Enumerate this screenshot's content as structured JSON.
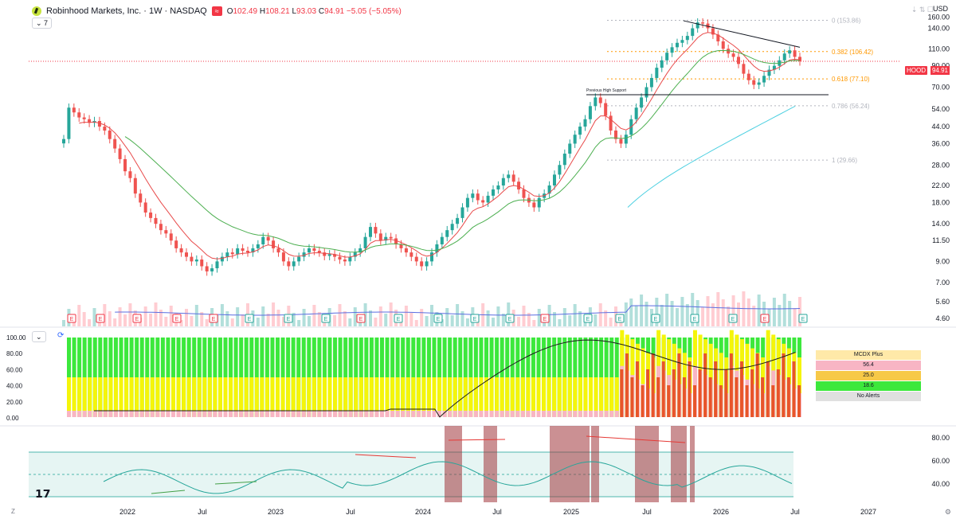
{
  "header": {
    "symbol_title": "Robinhood Markets, Inc. · 1W · NASDAQ",
    "badge": "≈",
    "ohlc": {
      "o_label": "O",
      "o": "102.49",
      "h_label": "H",
      "h": "108.21",
      "l_label": "L",
      "l": "93.03",
      "c_label": "C",
      "c": "94.91",
      "chg": "−5.05 (−5.05%)"
    },
    "collapse_label": "⌄ 7",
    "currency": "USD"
  },
  "colors": {
    "up": "#26a69a",
    "down": "#ef5350",
    "ema_red": "#e84a4a",
    "ema_green": "#4caf50",
    "cyan_ma": "#4dd0e1",
    "vol_ma": "#5b6ee1"
  },
  "price_axis": {
    "ticks": [
      "160.00",
      "140.00",
      "110.00",
      "90.00",
      "70.00",
      "54.00",
      "44.00",
      "36.00",
      "28.00",
      "22.00",
      "18.00",
      "14.00",
      "11.50",
      "9.00",
      "7.00",
      "5.60",
      "4.60"
    ]
  },
  "price_tag": {
    "symbol": "HOOD",
    "value": "94.91"
  },
  "fib": [
    {
      "label": "0 (153.86)",
      "value": 153.86,
      "color": "#b2b5be"
    },
    {
      "label": "0.382 (106.42)",
      "value": 106.42,
      "color": "#ff9800"
    },
    {
      "label": "0.618 (77.10)",
      "value": 77.1,
      "color": "#ff9800"
    },
    {
      "label": "0.786 (56.24)",
      "value": 56.24,
      "color": "#b2b5be"
    },
    {
      "label": "1 (29.66)",
      "value": 29.66,
      "color": "#b2b5be"
    }
  ],
  "annotation": "Previous High Support",
  "earnings_marker": "E",
  "mcdx": {
    "axis": [
      "100.00",
      "80.00",
      "60.00",
      "40.00",
      "20.00",
      "0.00"
    ],
    "title": "MCDX Plus",
    "v1": "56.4",
    "v2": "25.0",
    "v3": "18.6",
    "alerts": "No Alerts",
    "collapse_label": "⌄"
  },
  "rsi": {
    "axis": [
      "80.00",
      "60.00",
      "40.00"
    ]
  },
  "time_axis": [
    "2022",
    "Jul",
    "2023",
    "Jul",
    "2024",
    "Jul",
    "2025",
    "Jul",
    "2026",
    "Jul",
    "2027"
  ],
  "chart_data": {
    "type": "line",
    "series_close_weekly": [
      38,
      55,
      52,
      49,
      48,
      46,
      47,
      44,
      42,
      38,
      34,
      30,
      26,
      24,
      20,
      18,
      16,
      15,
      14,
      13,
      12.5,
      11.5,
      10.5,
      10,
      9.5,
      9,
      9.2,
      8.5,
      8,
      8.3,
      9,
      9.5,
      10,
      9.8,
      10.5,
      10.2,
      10,
      10.5,
      11,
      12,
      11.5,
      10.5,
      10,
      9,
      8.5,
      9,
      9.5,
      10,
      10.5,
      10.2,
      10,
      9.6,
      9.8,
      9.5,
      9.2,
      9,
      9.5,
      10,
      10.5,
      12,
      13.5,
      12.5,
      11.5,
      12,
      11.8,
      11,
      10.5,
      10,
      9.5,
      9,
      8.5,
      9,
      10,
      11,
      12,
      13,
      14,
      15,
      17,
      19,
      20,
      18.5,
      18,
      19.5,
      21,
      22,
      24,
      25,
      23,
      21,
      19,
      18,
      17,
      19,
      20,
      22,
      25,
      28,
      32,
      36,
      40,
      44,
      48,
      56,
      62,
      58,
      50,
      42,
      38,
      36,
      40,
      48,
      55,
      62,
      70,
      78,
      88,
      96,
      105,
      112,
      118,
      122,
      128,
      140,
      150,
      148,
      140,
      130,
      120,
      110,
      104,
      100,
      92,
      82,
      76,
      72,
      74,
      80,
      86,
      90,
      96,
      104,
      108,
      100,
      94.91
    ],
    "ylim": [
      4.6,
      160
    ]
  }
}
